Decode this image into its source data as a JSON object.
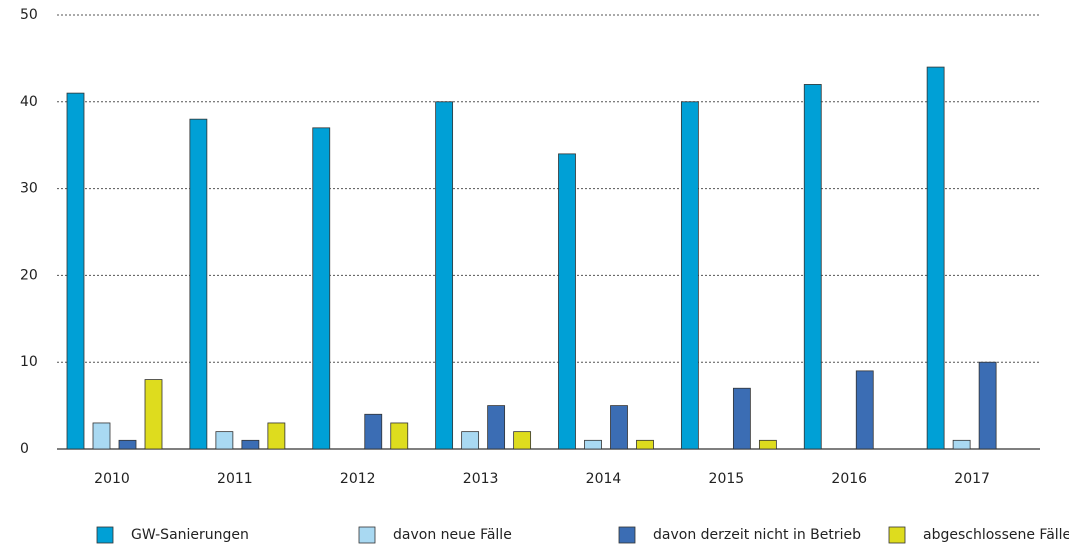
{
  "chart_data": {
    "type": "bar",
    "categories": [
      "2010",
      "2011",
      "2012",
      "2013",
      "2014",
      "2015",
      "2016",
      "2017"
    ],
    "series": [
      {
        "name": "GW-Sanierungen",
        "color": "#00a0d6",
        "values": [
          41,
          38,
          37,
          40,
          34,
          40,
          42,
          44
        ]
      },
      {
        "name": "davon neue Fälle",
        "color": "#a9d9f2",
        "values": [
          3,
          2,
          0,
          2,
          1,
          0,
          0,
          1
        ]
      },
      {
        "name": "davon derzeit nicht in Betrieb",
        "color": "#3b6db4",
        "values": [
          1,
          1,
          4,
          5,
          5,
          7,
          9,
          10
        ]
      },
      {
        "name": "abgeschlossene Fälle",
        "color": "#dedc1e",
        "values": [
          8,
          3,
          3,
          2,
          1,
          1,
          0,
          0
        ]
      }
    ],
    "ylim": [
      0,
      50
    ],
    "yticks": [
      0,
      10,
      20,
      30,
      40,
      50
    ],
    "grid": true,
    "legend": "bottom"
  }
}
